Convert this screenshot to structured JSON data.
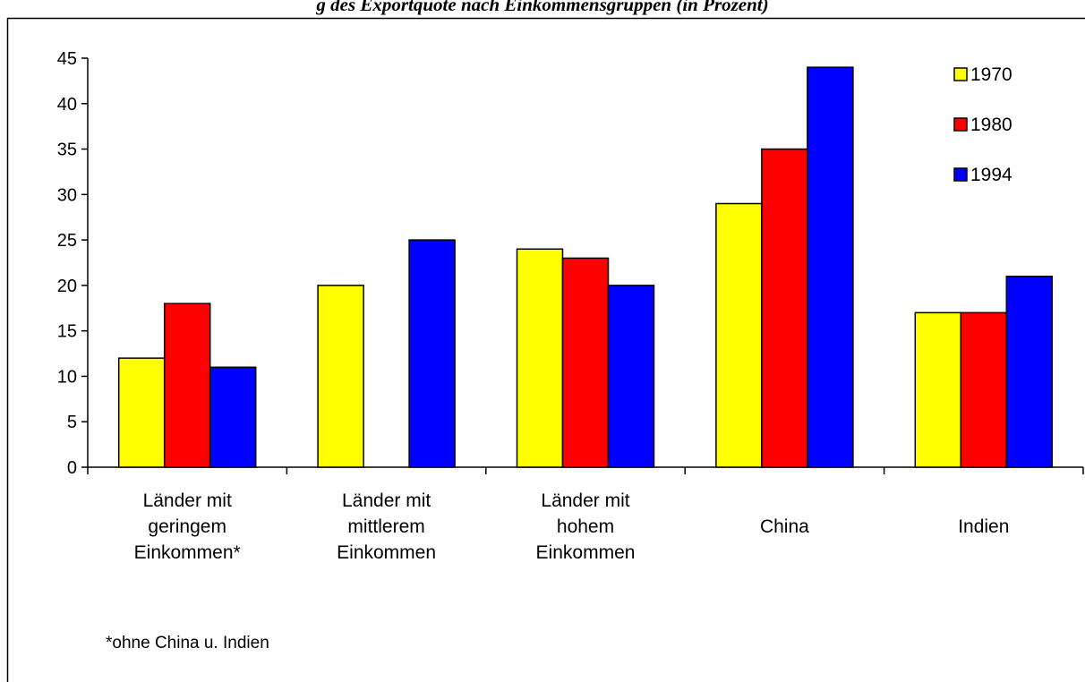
{
  "chart_title": "g des Exportquote nach Einkommensgruppen (in Prozent)",
  "chart_data": {
    "type": "bar",
    "categories": [
      [
        "Länder mit",
        "geringem",
        "Einkommen*"
      ],
      [
        "Länder mit",
        "mittlerem",
        "Einkommen"
      ],
      [
        "Länder mit",
        "hohem",
        "Einkommen"
      ],
      [
        "China"
      ],
      [
        "Indien"
      ]
    ],
    "series": [
      {
        "name": "1970",
        "color": "#ffff00",
        "values": [
          12,
          20,
          24,
          29,
          17
        ]
      },
      {
        "name": "1980",
        "color": "#ff0000",
        "values": [
          18,
          null,
          23,
          35,
          17
        ]
      },
      {
        "name": "1994",
        "color": "#0000ff",
        "values": [
          11,
          25,
          20,
          44,
          21
        ]
      }
    ],
    "ylim": [
      0,
      45
    ],
    "yticks": [
      "0",
      "5",
      "10",
      "15",
      "20",
      "25",
      "30",
      "35",
      "40",
      "45"
    ],
    "legend_position": "top-right",
    "grid": false,
    "footnote": "*ohne China u. Indien"
  }
}
